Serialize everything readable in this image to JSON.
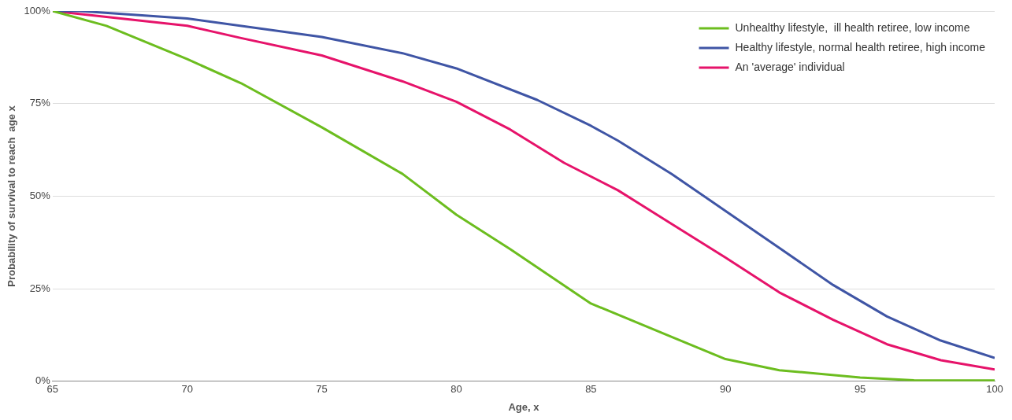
{
  "chart_data": {
    "type": "line",
    "xlabel": "Age, x",
    "ylabel": "Probability of survival to reach  age x",
    "xlim": [
      65,
      100
    ],
    "xticks": [
      65,
      70,
      75,
      80,
      85,
      90,
      95,
      100
    ],
    "ylim": [
      0,
      100
    ],
    "yticks": [
      {
        "value": 0,
        "label": "0%"
      },
      {
        "value": 25,
        "label": "25%"
      },
      {
        "value": 50,
        "label": "50%"
      },
      {
        "value": 75,
        "label": "75%"
      },
      {
        "value": 100,
        "label": "100%"
      }
    ],
    "grid": "y",
    "legend": "top right",
    "marker": "none",
    "series": [
      {
        "name": "Unhealthy lifestyle,  ill health retiree, low income",
        "color": "#6cbd1f",
        "x": [
          65,
          67,
          70,
          72,
          75,
          78,
          80,
          82,
          85,
          88,
          90,
          92,
          95,
          97,
          100
        ],
        "values": [
          100,
          96,
          87,
          80.5,
          68.6,
          56,
          45,
          35.7,
          21,
          12,
          6,
          3,
          1,
          0.3,
          0.2
        ]
      },
      {
        "name": "Healthy lifestyle, normal health retiree, high income",
        "color": "#3f55a5",
        "x": [
          65,
          66,
          70,
          75,
          78,
          80,
          83,
          85,
          86,
          88,
          90,
          92,
          94,
          96,
          98,
          100
        ],
        "values": [
          100,
          100,
          98,
          93,
          88.6,
          84.5,
          76,
          69,
          65,
          56,
          46,
          36,
          26,
          17.5,
          11,
          6.3
        ]
      },
      {
        "name": "An 'average' individual",
        "color": "#e6136a",
        "x": [
          65,
          70,
          72,
          75,
          78,
          80,
          82,
          84,
          86,
          88,
          90,
          92,
          94,
          96,
          98,
          100
        ],
        "values": [
          100,
          96,
          92.7,
          88,
          81,
          75.5,
          68,
          59,
          51.6,
          42.5,
          33.4,
          24,
          16.6,
          10,
          5.7,
          3.2
        ]
      }
    ]
  }
}
